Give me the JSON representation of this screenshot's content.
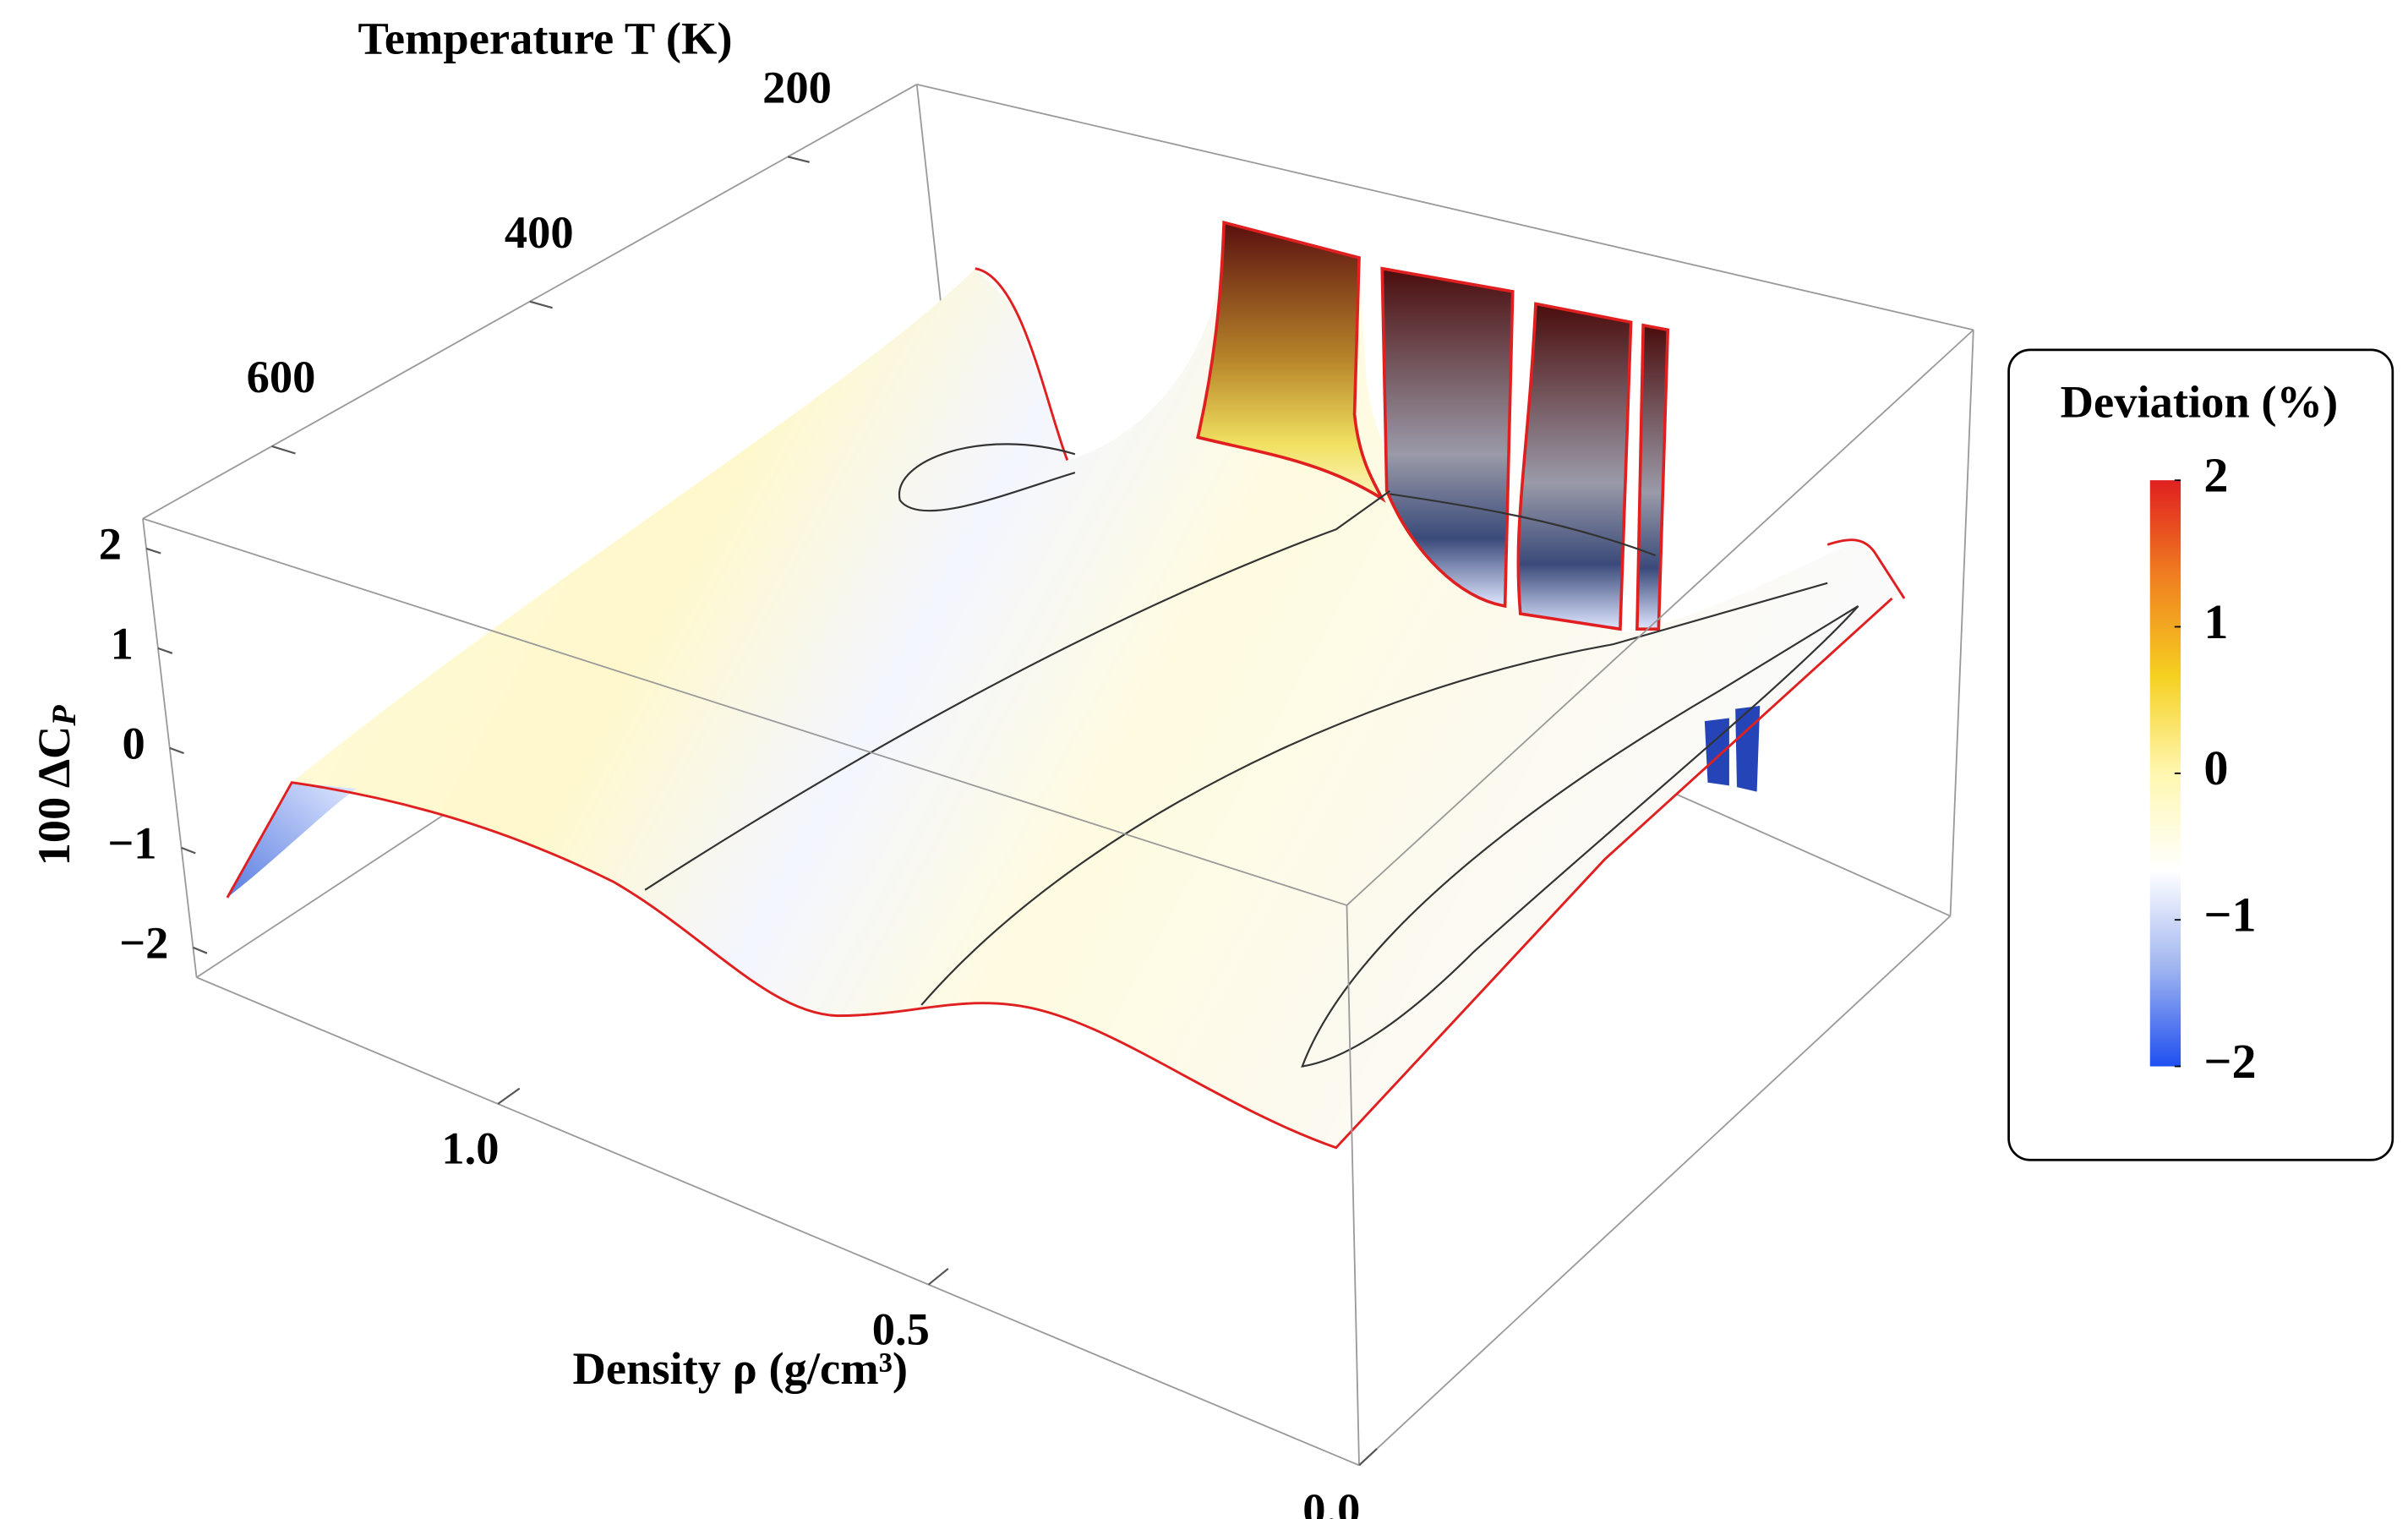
{
  "chart_data": {
    "type": "surface3d",
    "xlabel": "Density ρ (g/cm³)",
    "ylabel": "Temperature T (K)",
    "zlabel": "100 ΔC",
    "zlabel_subscript": "P",
    "xlim": [
      1.35,
      0
    ],
    "xticks": [
      {
        "value": 1,
        "label": "1.0"
      },
      0.5,
      {
        "value": 0,
        "label": "0.0"
      }
    ],
    "ylim": [
      700,
      100
    ],
    "yticks": [
      600,
      400,
      200
    ],
    "zlim": [
      -2.3,
      2.3
    ],
    "zticks": [
      2,
      1,
      0,
      {
        "value": -1,
        "label": "−1"
      },
      {
        "value": -2,
        "label": "−2"
      }
    ],
    "colorbar": {
      "title": "Deviation (%)",
      "clim": [
        -2,
        2
      ],
      "ticks": [
        2,
        1,
        0,
        {
          "value": -1,
          "label": "−1"
        },
        {
          "value": -2,
          "label": "−2"
        }
      ],
      "colors": [
        "#1f4ff0",
        "#9fb4f0",
        "#ffffff",
        "#fff7b0",
        "#f5d020",
        "#f08020",
        "#e02020"
      ]
    }
  }
}
